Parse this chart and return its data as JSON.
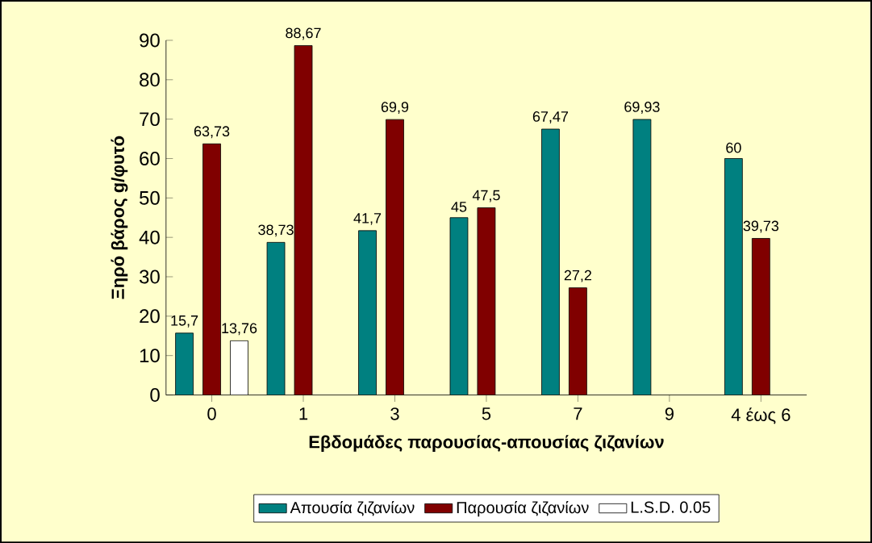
{
  "chart_data": {
    "type": "bar",
    "xlabel": "Εβδομάδες παρουσίας-απουσίας ζιζανίων",
    "ylabel": "Ξηρό βάρος g/φυτό",
    "categories": [
      "0",
      "1",
      "3",
      "5",
      "7",
      "9",
      "4 έως 6"
    ],
    "series": [
      {
        "name": "Απουσία ζιζανίων",
        "color": "#008080",
        "values": [
          15.7,
          38.73,
          41.7,
          45,
          67.47,
          69.93,
          60
        ],
        "value_labels": [
          "15,7",
          "38,73",
          "41,7",
          "45",
          "67,47",
          "69,93",
          "60"
        ]
      },
      {
        "name": "Παρουσία ζιζανίων",
        "color": "#800000",
        "values": [
          63.73,
          88.67,
          69.9,
          47.5,
          27.2,
          null,
          39.73
        ],
        "value_labels": [
          "63,73",
          "88,67",
          "69,9",
          "47,5",
          "27,2",
          null,
          "39,73"
        ]
      },
      {
        "name": "L.S.D. 0.05",
        "color": "#ffffff",
        "values": [
          13.76,
          null,
          null,
          null,
          null,
          null,
          null
        ],
        "value_labels": [
          "13,76",
          null,
          null,
          null,
          null,
          null,
          null
        ]
      }
    ],
    "ylim": [
      0,
      90
    ],
    "yticks": [
      0,
      10,
      20,
      30,
      40,
      50,
      60,
      70,
      80,
      90
    ],
    "legend": "bottom",
    "grid": false
  }
}
